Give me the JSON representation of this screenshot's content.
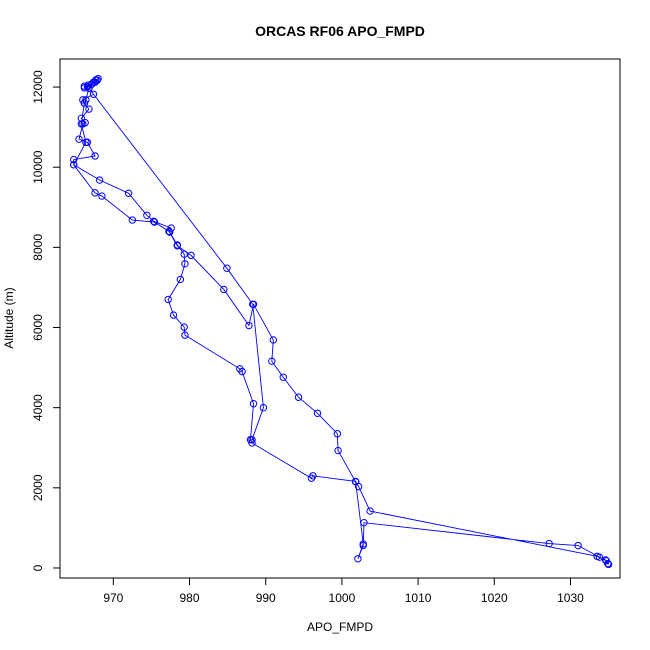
{
  "chart_data": {
    "type": "line",
    "title": "ORCAS RF06 APO_FMPD",
    "xlabel": "APO_FMPD",
    "ylabel": "Altitude (m)",
    "xlim": [
      963,
      1036.5
    ],
    "ylim": [
      -250,
      12700
    ],
    "x_ticks": [
      970,
      980,
      990,
      1000,
      1010,
      1020,
      1030
    ],
    "y_ticks": [
      0,
      2000,
      4000,
      6000,
      8000,
      10000,
      12000
    ],
    "grid": false,
    "legend": "none",
    "series": [
      {
        "color": "#0000ff",
        "marker": "open-circle",
        "points": [
          {
            "x": 966.2,
            "y": 12020
          },
          {
            "x": 966.7,
            "y": 12050
          },
          {
            "x": 967.2,
            "y": 12080
          },
          {
            "x": 967.6,
            "y": 12120
          },
          {
            "x": 967.9,
            "y": 12170
          },
          {
            "x": 968.0,
            "y": 12210
          },
          {
            "x": 967.7,
            "y": 12180
          },
          {
            "x": 967.4,
            "y": 12120
          },
          {
            "x": 967.1,
            "y": 12060
          },
          {
            "x": 966.6,
            "y": 12010
          },
          {
            "x": 966.2,
            "y": 11980
          },
          {
            "x": 966.8,
            "y": 11970
          },
          {
            "x": 967.4,
            "y": 11820
          },
          {
            "x": 966.0,
            "y": 11680
          },
          {
            "x": 966.2,
            "y": 11600
          },
          {
            "x": 966.8,
            "y": 11450
          },
          {
            "x": 965.8,
            "y": 11220
          },
          {
            "x": 966.3,
            "y": 11110
          },
          {
            "x": 966.0,
            "y": 11080
          },
          {
            "x": 965.5,
            "y": 10700
          },
          {
            "x": 966.6,
            "y": 10620
          },
          {
            "x": 967.6,
            "y": 10280
          },
          {
            "x": 964.8,
            "y": 10190
          },
          {
            "x": 964.8,
            "y": 10060
          },
          {
            "x": 968.2,
            "y": 9680
          },
          {
            "x": 972.0,
            "y": 9350
          },
          {
            "x": 974.4,
            "y": 8800
          },
          {
            "x": 975.3,
            "y": 8650
          },
          {
            "x": 977.6,
            "y": 8480
          },
          {
            "x": 977.4,
            "y": 8380
          },
          {
            "x": 978.4,
            "y": 8060
          },
          {
            "x": 979.3,
            "y": 7830
          },
          {
            "x": 979.4,
            "y": 7590
          },
          {
            "x": 978.8,
            "y": 7200
          },
          {
            "x": 977.2,
            "y": 6700
          },
          {
            "x": 977.9,
            "y": 6310
          },
          {
            "x": 979.3,
            "y": 6010
          },
          {
            "x": 979.4,
            "y": 5810
          },
          {
            "x": 986.6,
            "y": 4970
          },
          {
            "x": 986.9,
            "y": 4900
          },
          {
            "x": 988.4,
            "y": 4100
          },
          {
            "x": 988.0,
            "y": 3200
          },
          {
            "x": 988.2,
            "y": 3120
          },
          {
            "x": 996.0,
            "y": 2240
          },
          {
            "x": 996.2,
            "y": 2300
          },
          {
            "x": 1001.8,
            "y": 2160
          },
          {
            "x": 1002.2,
            "y": 2030
          },
          {
            "x": 1003.7,
            "y": 1420
          },
          {
            "x": 1033.5,
            "y": 290
          },
          {
            "x": 1034.7,
            "y": 180
          },
          {
            "x": 1035.0,
            "y": 90
          },
          {
            "x": 1034.9,
            "y": 110
          },
          {
            "x": 1034.6,
            "y": 200
          },
          {
            "x": 1033.8,
            "y": 270
          },
          {
            "x": 1031.0,
            "y": 560
          },
          {
            "x": 1027.2,
            "y": 610
          },
          {
            "x": 1002.9,
            "y": 1130
          },
          {
            "x": 1002.8,
            "y": 560
          },
          {
            "x": 1002.1,
            "y": 230
          },
          {
            "x": 1002.8,
            "y": 600
          },
          {
            "x": 1001.8,
            "y": 2150
          },
          {
            "x": 999.5,
            "y": 2930
          },
          {
            "x": 999.4,
            "y": 3350
          },
          {
            "x": 996.8,
            "y": 3860
          },
          {
            "x": 994.3,
            "y": 4260
          },
          {
            "x": 992.3,
            "y": 4760
          },
          {
            "x": 990.8,
            "y": 5160
          },
          {
            "x": 991.0,
            "y": 5690
          },
          {
            "x": 988.4,
            "y": 6580
          },
          {
            "x": 987.8,
            "y": 6050
          },
          {
            "x": 984.5,
            "y": 6950
          },
          {
            "x": 980.2,
            "y": 7800
          },
          {
            "x": 978.4,
            "y": 8040
          },
          {
            "x": 977.3,
            "y": 8400
          },
          {
            "x": 975.4,
            "y": 8630
          },
          {
            "x": 972.5,
            "y": 8680
          },
          {
            "x": 968.5,
            "y": 9280
          },
          {
            "x": 967.6,
            "y": 9360
          },
          {
            "x": 964.8,
            "y": 10060
          },
          {
            "x": 966.4,
            "y": 10620
          },
          {
            "x": 965.8,
            "y": 11080
          },
          {
            "x": 966.2,
            "y": 11600
          },
          {
            "x": 966.4,
            "y": 11680
          },
          {
            "x": 966.8,
            "y": 11970
          },
          {
            "x": 984.9,
            "y": 7480
          },
          {
            "x": 988.3,
            "y": 6580
          },
          {
            "x": 989.7,
            "y": 4000
          },
          {
            "x": 988.2,
            "y": 3200
          }
        ]
      }
    ]
  }
}
